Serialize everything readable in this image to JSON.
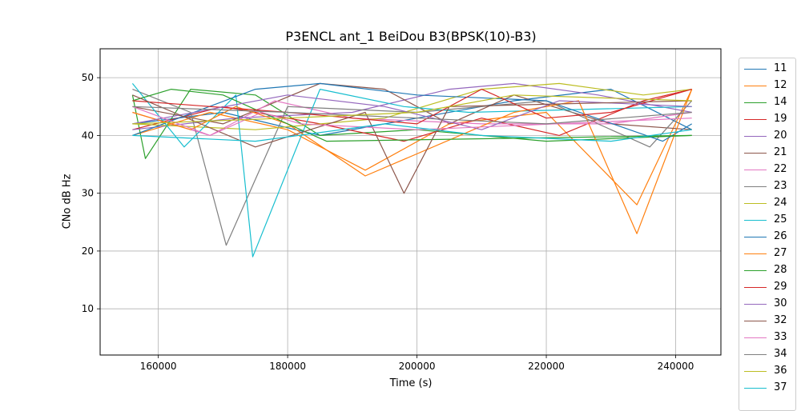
{
  "chart_data": {
    "type": "line",
    "title": "P3ENCL ant_1 BeiDou B3(BPSK(10)-B3)",
    "xlabel": "Time (s)",
    "ylabel": "CNo dB Hz",
    "xlim": [
      151000,
      247000
    ],
    "ylim": [
      2,
      55
    ],
    "xticks": [
      160000,
      180000,
      200000,
      220000,
      240000
    ],
    "yticks": [
      10,
      20,
      30,
      40,
      50
    ],
    "grid": true,
    "legend_position": "outside-right",
    "series": [
      {
        "name": "11",
        "color": "#1f77b4",
        "x": [
          156000,
          170000,
          185000,
          200000,
          215000,
          230000,
          242500
        ],
        "y": [
          42,
          44,
          40,
          43,
          46,
          48,
          41
        ]
      },
      {
        "name": "12",
        "color": "#ff7f0e",
        "x": [
          156000,
          168000,
          180000,
          192000,
          205000,
          220000,
          234000,
          242500
        ],
        "y": [
          40,
          44,
          41,
          34,
          42,
          44,
          28,
          48
        ]
      },
      {
        "name": "14",
        "color": "#2ca02c",
        "x": [
          156000,
          158000,
          165000,
          175000,
          185000,
          200000,
          220000,
          242500
        ],
        "y": [
          47,
          36,
          48,
          47,
          40,
          41,
          39,
          40
        ]
      },
      {
        "name": "19",
        "color": "#d62728",
        "x": [
          156000,
          170000,
          185000,
          198000,
          210000,
          222000,
          235000,
          242500
        ],
        "y": [
          41,
          45,
          42,
          39,
          43,
          40,
          46,
          48
        ]
      },
      {
        "name": "20",
        "color": "#9467bd",
        "x": [
          156000,
          172000,
          190000,
          205000,
          215000,
          228000,
          242500
        ],
        "y": [
          41,
          43,
          44,
          48,
          49,
          47,
          44
        ]
      },
      {
        "name": "21",
        "color": "#8c564b",
        "x": [
          156000,
          170000,
          185000,
          195000,
          205000,
          215000,
          230000,
          242500
        ],
        "y": [
          45,
          42,
          49,
          48,
          42,
          47,
          42,
          41
        ]
      },
      {
        "name": "22",
        "color": "#e377c2",
        "x": [
          156000,
          168000,
          178000,
          190000,
          210000,
          230000,
          242500
        ],
        "y": [
          44,
          40,
          46,
          43,
          42,
          42,
          44
        ]
      },
      {
        "name": "23",
        "color": "#7f7f7f",
        "x": [
          156000,
          165000,
          170500,
          180000,
          200000,
          220000,
          236000,
          242500
        ],
        "y": [
          48,
          44,
          21,
          45,
          44,
          46,
          38,
          46
        ]
      },
      {
        "name": "24",
        "color": "#bcbd22",
        "x": [
          156000,
          175000,
          195000,
          210000,
          222000,
          235000,
          242500
        ],
        "y": [
          42,
          41,
          43,
          48,
          49,
          47,
          48
        ]
      },
      {
        "name": "25",
        "color": "#17becf",
        "x": [
          156000,
          164000,
          172000,
          174600,
          185000,
          198000,
          208000,
          242500
        ],
        "y": [
          49,
          38,
          47,
          19,
          48,
          45,
          44,
          45
        ]
      },
      {
        "name": "26",
        "color": "#1f77b4",
        "x": [
          156000,
          175000,
          185000,
          200000,
          220000,
          238000,
          242500
        ],
        "y": [
          40,
          48,
          49,
          47,
          46,
          39,
          42
        ]
      },
      {
        "name": "27",
        "color": "#ff7f0e",
        "x": [
          156000,
          165000,
          172000,
          180000,
          192000,
          215000,
          225000,
          234000,
          242500
        ],
        "y": [
          44,
          41,
          45,
          42,
          33,
          44,
          46,
          23,
          48
        ]
      },
      {
        "name": "28",
        "color": "#2ca02c",
        "x": [
          156000,
          162000,
          170000,
          178000,
          186000,
          242500
        ],
        "y": [
          46,
          48,
          47,
          43,
          39,
          40
        ]
      },
      {
        "name": "29",
        "color": "#d62728",
        "x": [
          156000,
          180000,
          200000,
          210000,
          220000,
          230000,
          242500
        ],
        "y": [
          46,
          44,
          42,
          48,
          43,
          44,
          48
        ]
      },
      {
        "name": "30",
        "color": "#9467bd",
        "x": [
          156000,
          180000,
          195000,
          210000,
          222000,
          242500
        ],
        "y": [
          42,
          47,
          45,
          41,
          46,
          45
        ]
      },
      {
        "name": "32",
        "color": "#8c564b",
        "x": [
          156000,
          175000,
          192000,
          198000,
          205000,
          242500
        ],
        "y": [
          47,
          38,
          44,
          30,
          45,
          46
        ]
      },
      {
        "name": "33",
        "color": "#e377c2",
        "x": [
          156000,
          168000,
          176000,
          182000,
          200000,
          242500
        ],
        "y": [
          45,
          40,
          44,
          42,
          41,
          43
        ]
      },
      {
        "name": "34",
        "color": "#7f7f7f",
        "x": [
          156000,
          180000,
          200000,
          220000,
          242500
        ],
        "y": [
          45,
          44,
          43,
          42,
          44
        ]
      },
      {
        "name": "36",
        "color": "#bcbd22",
        "x": [
          156000,
          180000,
          200000,
          215000,
          242500
        ],
        "y": [
          42,
          43,
          44,
          47,
          46
        ]
      },
      {
        "name": "37",
        "color": "#17becf",
        "x": [
          156000,
          175000,
          195000,
          210000,
          230000,
          242500
        ],
        "y": [
          40,
          39,
          42,
          40,
          39,
          41
        ]
      }
    ]
  }
}
